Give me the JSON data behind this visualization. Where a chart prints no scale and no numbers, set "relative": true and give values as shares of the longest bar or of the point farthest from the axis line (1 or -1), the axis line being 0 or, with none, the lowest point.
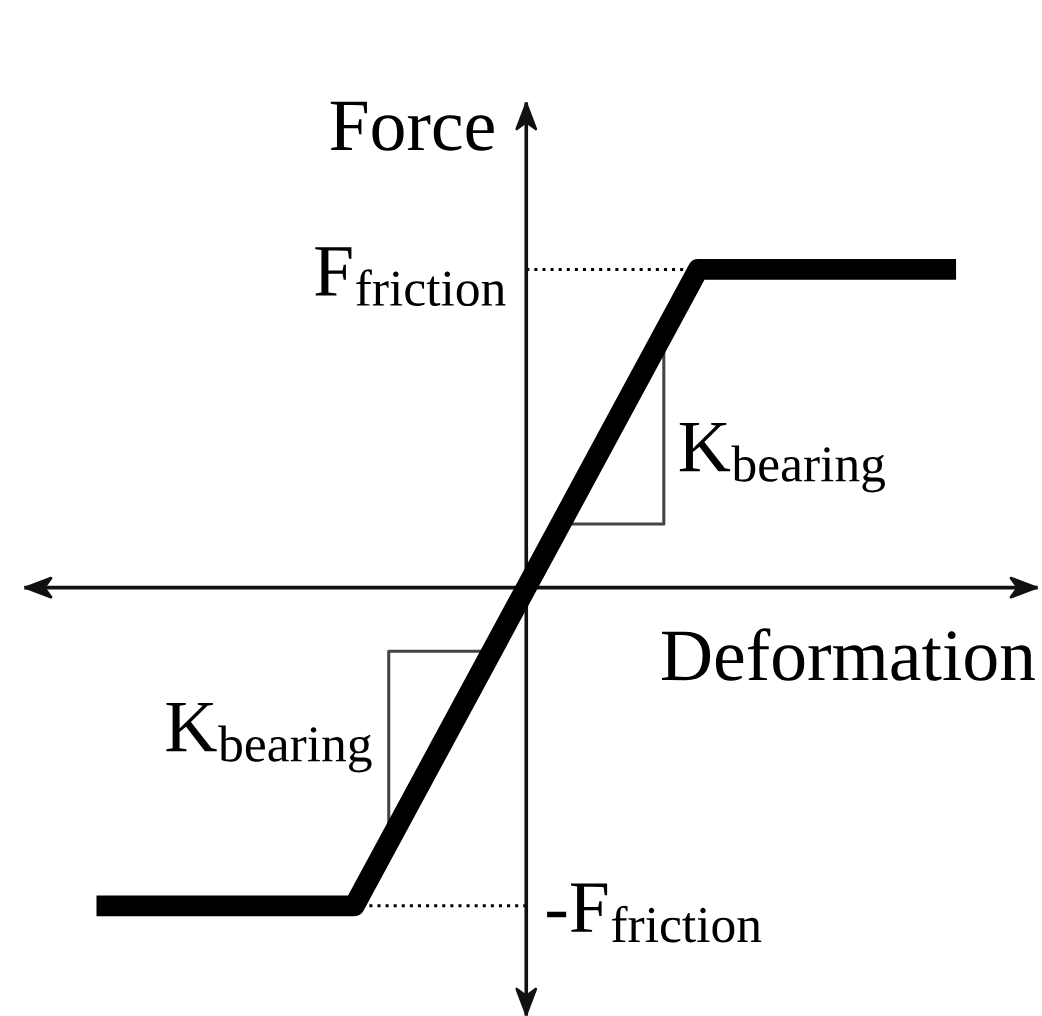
{
  "chart_data": {
    "type": "line",
    "relative": true,
    "xlabel": "Deformation",
    "ylabel": "Force",
    "categories": [
      null,
      null,
      null,
      null,
      null,
      null,
      null,
      null,
      null,
      null,
      null
    ],
    "series": [
      {
        "color": "#000000",
        "values": [
          -1,
          -1,
          -1,
          -1,
          -0.5,
          0,
          0.5,
          1,
          1,
          1,
          1
        ]
      }
    ],
    "line_style": "solid",
    "ref_lines": [
      {
        "axis": "y",
        "value": 1,
        "label": "F$_{friction}$",
        "line_style": "dotted",
        "color": "#000000"
      },
      {
        "axis": "y",
        "value": -1,
        "label": "-F$_{friction}$",
        "line_style": "dotted",
        "color": "#000000"
      }
    ],
    "annotations": [
      "K$_{bearing}$",
      "K$_{bearing}$"
    ]
  }
}
